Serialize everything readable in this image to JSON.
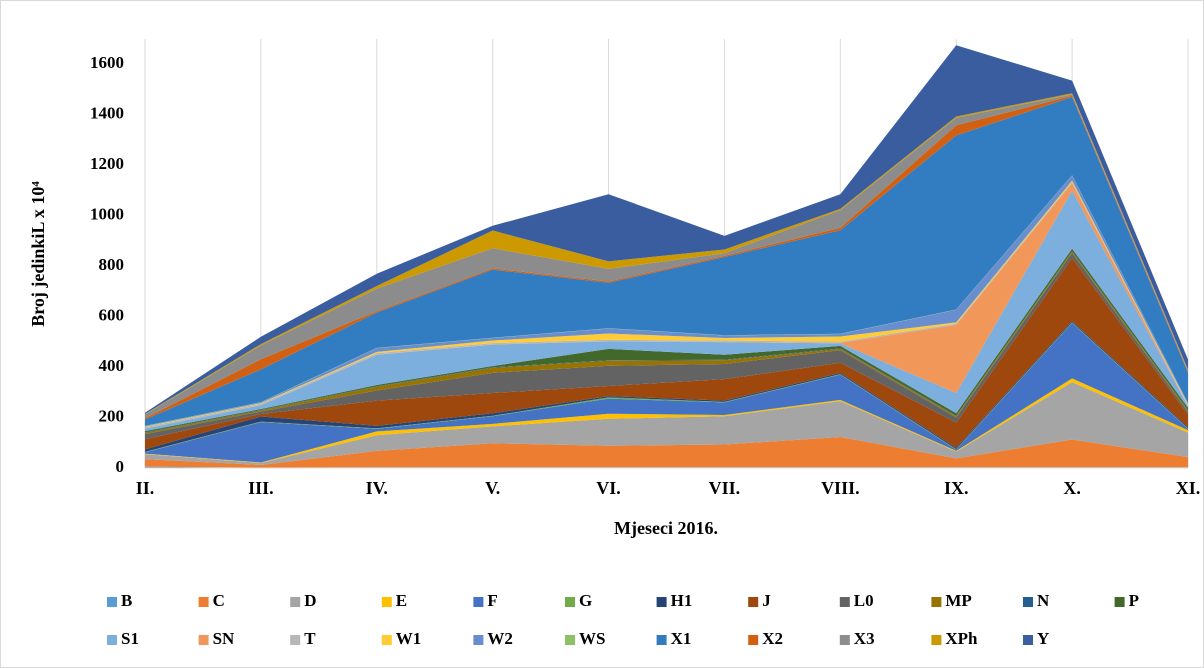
{
  "chart_data": {
    "type": "stacked_area",
    "y_label": "Broj jedinkiL x 10⁴",
    "x_label": "Mjeseci 2016.",
    "categories": [
      "II.",
      "III.",
      "IV.",
      "V.",
      "VI.",
      "VII.",
      "VIII.",
      "IX.",
      "X.",
      "XI."
    ],
    "ylim": [
      0,
      1700
    ],
    "yticks": [
      0,
      200,
      400,
      600,
      800,
      1000,
      1200,
      1400,
      1600
    ],
    "grid": "x",
    "legend": "bottom",
    "series": [
      {
        "name": "B",
        "color": "#5b9bd5",
        "values": [
          5,
          2,
          3,
          3,
          3,
          3,
          3,
          3,
          3,
          3
        ]
      },
      {
        "name": "C",
        "color": "#ed7d31",
        "values": [
          30,
          10,
          65,
          95,
          85,
          90,
          120,
          35,
          110,
          40
        ]
      },
      {
        "name": "D",
        "color": "#a5a5a5",
        "values": [
          20,
          8,
          62,
          67,
          107,
          112,
          142,
          27,
          227,
          97
        ]
      },
      {
        "name": "E",
        "color": "#ffc000",
        "values": [
          2,
          2,
          15,
          10,
          20,
          5,
          5,
          3,
          15,
          10
        ]
      },
      {
        "name": "F",
        "color": "#4472c4",
        "values": [
          5,
          160,
          10,
          30,
          60,
          50,
          100,
          5,
          220,
          5
        ]
      },
      {
        "name": "G",
        "color": "#70ad47",
        "values": [
          2,
          2,
          2,
          2,
          5,
          2,
          2,
          2,
          2,
          2
        ]
      },
      {
        "name": "H1",
        "color": "#264478",
        "values": [
          10,
          20,
          10,
          10,
          5,
          5,
          5,
          5,
          5,
          5
        ]
      },
      {
        "name": "J",
        "color": "#9e480e",
        "values": [
          40,
          10,
          100,
          80,
          40,
          85,
          40,
          100,
          250,
          50
        ]
      },
      {
        "name": "L0",
        "color": "#636363",
        "values": [
          20,
          10,
          40,
          80,
          80,
          60,
          50,
          20,
          20,
          10
        ]
      },
      {
        "name": "MP",
        "color": "#997300",
        "values": [
          5,
          5,
          15,
          20,
          20,
          15,
          5,
          5,
          5,
          5
        ]
      },
      {
        "name": "N",
        "color": "#255e91",
        "values": [
          2,
          2,
          2,
          2,
          2,
          2,
          2,
          2,
          2,
          2
        ]
      },
      {
        "name": "P",
        "color": "#43682b",
        "values": [
          5,
          3,
          5,
          5,
          45,
          20,
          10,
          10,
          10,
          10
        ]
      },
      {
        "name": "S1",
        "color": "#7cafdd",
        "values": [
          10,
          15,
          120,
          85,
          30,
          50,
          10,
          80,
          230,
          5
        ]
      },
      {
        "name": "SN",
        "color": "#f1975a",
        "values": [
          1,
          1,
          1,
          1,
          1,
          1,
          2,
          270,
          30,
          1
        ]
      },
      {
        "name": "T",
        "color": "#b7b7b7",
        "values": [
          5,
          5,
          5,
          5,
          5,
          5,
          5,
          5,
          5,
          5
        ]
      },
      {
        "name": "W1",
        "color": "#ffcd33",
        "values": [
          2,
          2,
          5,
          10,
          25,
          10,
          20,
          5,
          5,
          3
        ]
      },
      {
        "name": "W2",
        "color": "#698ed0",
        "values": [
          2,
          3,
          15,
          10,
          20,
          10,
          10,
          50,
          20,
          3
        ]
      },
      {
        "name": "WS",
        "color": "#8cc168",
        "values": [
          1,
          1,
          1,
          1,
          1,
          1,
          1,
          1,
          1,
          1
        ]
      },
      {
        "name": "X1",
        "color": "#327dc2",
        "values": [
          25,
          130,
          140,
          270,
          180,
          310,
          410,
          690,
          310,
          120
        ]
      },
      {
        "name": "X2",
        "color": "#d26012",
        "values": [
          5,
          40,
          5,
          5,
          5,
          5,
          10,
          40,
          5,
          5
        ]
      },
      {
        "name": "X3",
        "color": "#8c8c8c",
        "values": [
          15,
          55,
          90,
          80,
          50,
          10,
          70,
          30,
          5,
          5
        ]
      },
      {
        "name": "XPh",
        "color": "#cc9a00",
        "values": [
          2,
          5,
          10,
          70,
          30,
          15,
          5,
          5,
          5,
          3
        ]
      },
      {
        "name": "Y",
        "color": "#3a5da0",
        "values": [
          5,
          29,
          49,
          19,
          266,
          54,
          58,
          282,
          50,
          40
        ]
      }
    ]
  }
}
